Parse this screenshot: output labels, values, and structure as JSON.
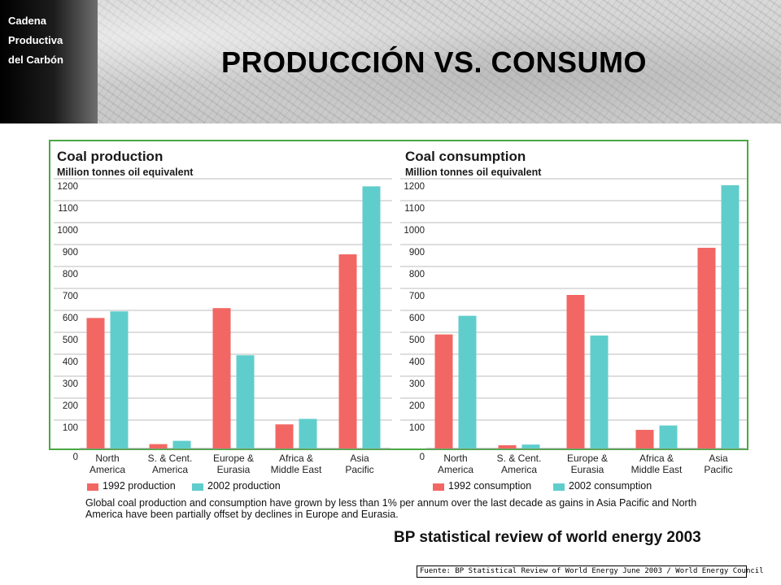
{
  "header": {
    "corner_label": [
      "Cadena",
      "Productiva",
      "del Carbón"
    ],
    "title": "PRODUCCIÓN VS. CONSUMO"
  },
  "colors": {
    "series_1992": "#f26763",
    "series_2002": "#60cdcd",
    "frame": "#49a844"
  },
  "chart_data": [
    {
      "type": "bar",
      "title": "Coal production",
      "subtitle": "Million tonnes oil equivalent",
      "categories": [
        "North America",
        "S. & Cent. America",
        "Europe & Eurasia",
        "Africa & Middle East",
        "Asia Pacific"
      ],
      "category_lines": [
        [
          "North",
          "America"
        ],
        [
          "S. & Cent.",
          "America"
        ],
        [
          "Europe &",
          "Eurasia"
        ],
        [
          "Africa &",
          "Middle East"
        ],
        [
          "Asia",
          "Pacific"
        ]
      ],
      "series": [
        {
          "name": "1992 production",
          "values": [
            595,
            20,
            640,
            110,
            885
          ]
        },
        {
          "name": "2002 production",
          "values": [
            625,
            35,
            425,
            135,
            1195
          ]
        }
      ],
      "ylim": [
        0,
        1200
      ],
      "yticks": [
        0,
        100,
        200,
        300,
        400,
        500,
        600,
        700,
        800,
        900,
        1000,
        1100,
        1200
      ],
      "grid": true
    },
    {
      "type": "bar",
      "title": "Coal consumption",
      "subtitle": "Million tonnes oil equivalent",
      "categories": [
        "North America",
        "S. & Cent. America",
        "Europe & Eurasia",
        "Africa & Middle East",
        "Asia Pacific"
      ],
      "category_lines": [
        [
          "North",
          "America"
        ],
        [
          "S. & Cent.",
          "America"
        ],
        [
          "Europe &",
          "Eurasia"
        ],
        [
          "Africa &",
          "Middle East"
        ],
        [
          "Asia",
          "Pacific"
        ]
      ],
      "series": [
        {
          "name": "1992 consumption",
          "values": [
            520,
            15,
            700,
            85,
            915
          ]
        },
        {
          "name": "2002 consumption",
          "values": [
            605,
            18,
            515,
            105,
            1200
          ]
        }
      ],
      "ylim": [
        0,
        1200
      ],
      "yticks": [
        0,
        100,
        200,
        300,
        400,
        500,
        600,
        700,
        800,
        900,
        1000,
        1100,
        1200
      ],
      "grid": true
    }
  ],
  "caption": "Global coal production and consumption have grown by less than 1% per annum over the last decade as gains in Asia Pacific and North America have been partially offset by declines in Europe and Eurasia.",
  "bp_title": "BP statistical review of world energy 2003",
  "source": "Fuente: BP Statistical Review of World Energy June 2003 / World Energy Council"
}
